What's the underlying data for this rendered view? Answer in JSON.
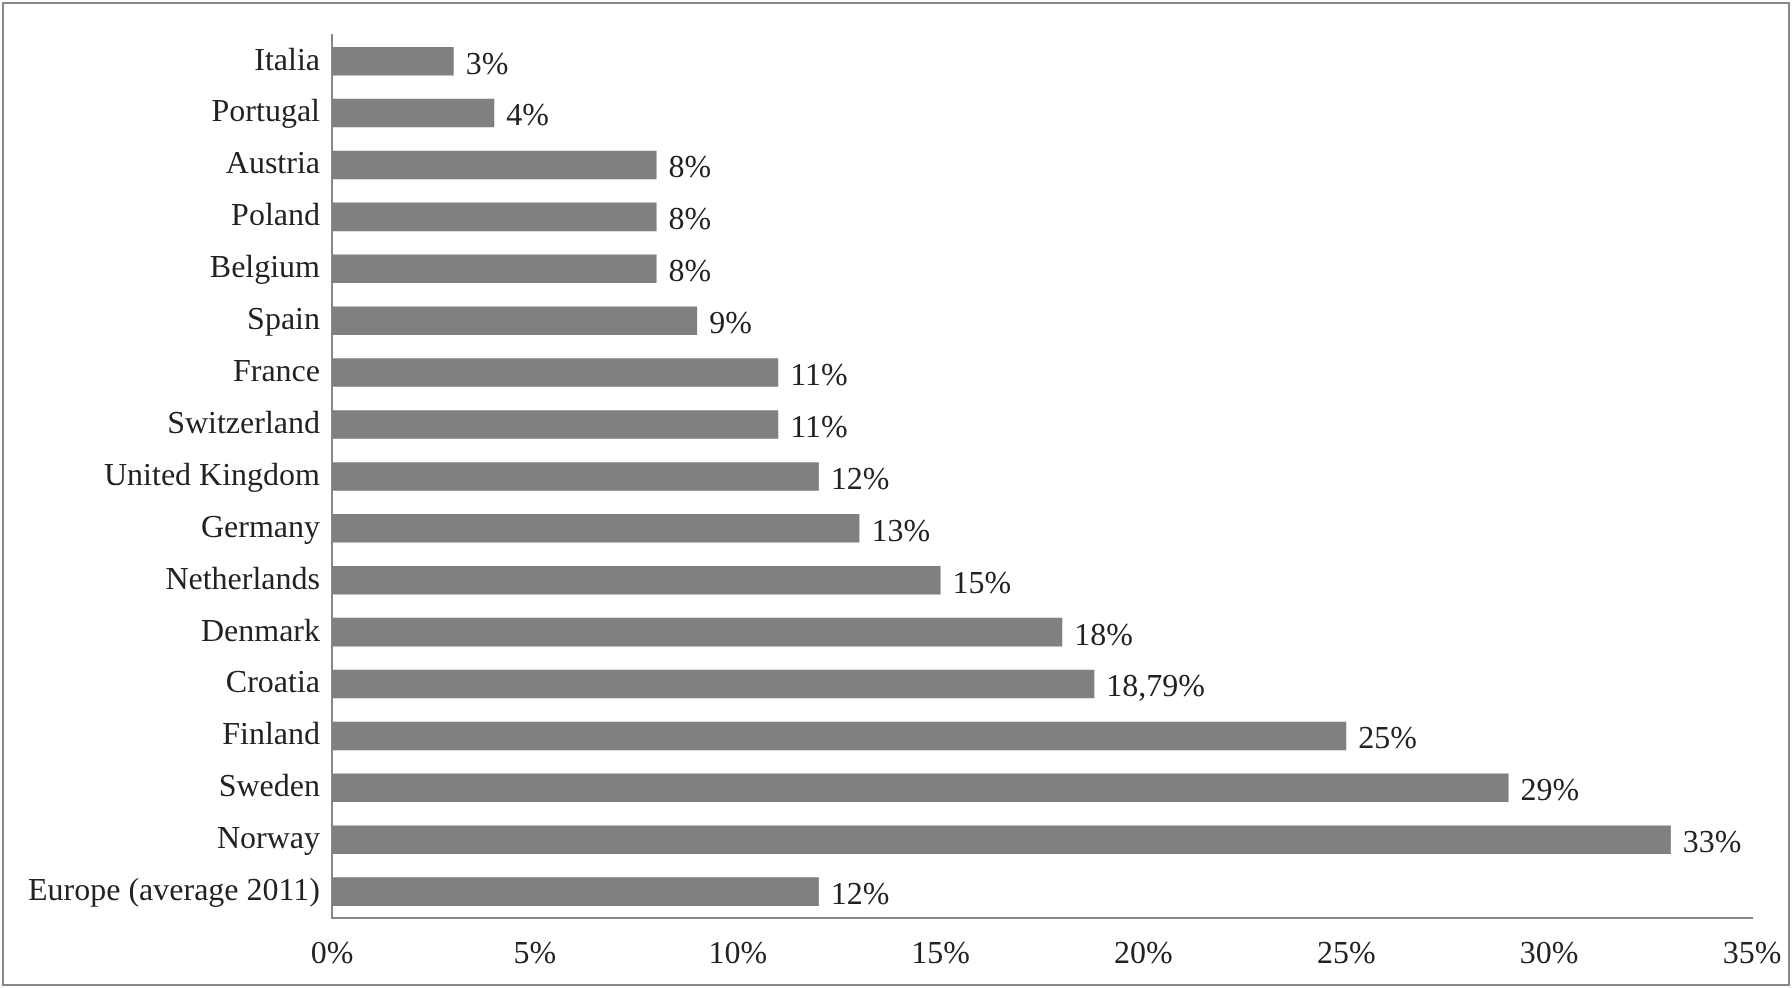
{
  "chart_data": {
    "type": "bar",
    "orientation": "horizontal",
    "categories": [
      "Italia",
      "Portugal",
      "Austria",
      "Poland",
      "Belgium",
      "Spain",
      "France",
      "Switzerland",
      "United Kingdom",
      "Germany",
      "Netherlands",
      "Denmark",
      "Croatia",
      "Finland",
      "Sweden",
      "Norway",
      "Europe (average 2011)"
    ],
    "values": [
      3,
      4,
      8,
      8,
      8,
      9,
      11,
      11,
      12,
      13,
      15,
      18,
      18.79,
      25,
      29,
      33,
      12
    ],
    "value_labels": [
      "3%",
      "4%",
      "8%",
      "8%",
      "8%",
      "9%",
      "11%",
      "11%",
      "12%",
      "13%",
      "15%",
      "18%",
      "18,79%",
      "25%",
      "29%",
      "33%",
      "12%"
    ],
    "color": "#808080",
    "xlim": [
      0,
      35
    ],
    "xticks": [
      {
        "value": 0,
        "label": "0%"
      },
      {
        "value": 5,
        "label": "5%"
      },
      {
        "value": 10,
        "label": "10%"
      },
      {
        "value": 15,
        "label": "15%"
      },
      {
        "value": 20,
        "label": "20%"
      },
      {
        "value": 25,
        "label": "25%"
      },
      {
        "value": 30,
        "label": "30%"
      },
      {
        "value": 35,
        "label": "35%"
      }
    ]
  }
}
